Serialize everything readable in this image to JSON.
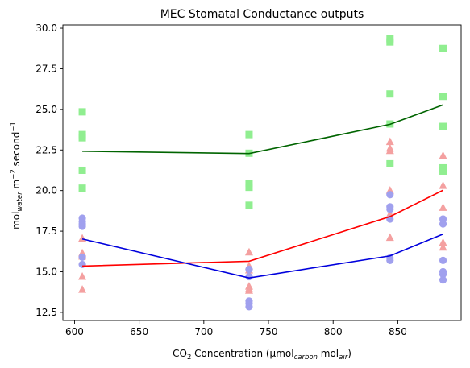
{
  "chart_data": {
    "type": "scatter",
    "title": "MEC Stomatal Conductance outputs",
    "xlabel": {
      "parts": [
        {
          "text": "CO",
          "style": "normal"
        },
        {
          "text": "2",
          "style": "sub-plain"
        },
        {
          "text": " Concentration (μmol",
          "style": "normal"
        },
        {
          "text": "carbon",
          "style": "sub"
        },
        {
          "text": " mol",
          "style": "normal"
        },
        {
          "text": "air",
          "style": "sub"
        },
        {
          "text": ")",
          "style": "normal"
        }
      ]
    },
    "ylabel": {
      "parts": [
        {
          "text": "mol",
          "style": "normal"
        },
        {
          "text": "water",
          "style": "sub"
        },
        {
          "text": " m",
          "style": "normal"
        },
        {
          "text": "−2",
          "style": "sup"
        },
        {
          "text": " second",
          "style": "normal"
        },
        {
          "text": "−1",
          "style": "sup"
        }
      ]
    },
    "xlim": [
      591,
      899
    ],
    "ylim": [
      12.0,
      30.2
    ],
    "x_ticks": [
      600,
      650,
      700,
      750,
      800,
      850
    ],
    "x_tick_labels": [
      "600",
      "650",
      "700",
      "750",
      "800",
      "850"
    ],
    "y_ticks": [
      12.5,
      15.0,
      17.5,
      20.0,
      22.5,
      25.0,
      27.5,
      30.0
    ],
    "y_tick_labels": [
      "12.5",
      "15.0",
      "17.5",
      "20.0",
      "22.5",
      "25.0",
      "27.5",
      "30.0"
    ],
    "grid": false,
    "scatter_series": [
      {
        "marker": "square",
        "color": "#90ee90",
        "points": [
          [
            606,
            24.85
          ],
          [
            606,
            23.45
          ],
          [
            606,
            23.25
          ],
          [
            606,
            21.25
          ],
          [
            606,
            20.15
          ],
          [
            735,
            23.45
          ],
          [
            735,
            22.3
          ],
          [
            735,
            20.45
          ],
          [
            735,
            20.2
          ],
          [
            735,
            19.1
          ],
          [
            844,
            29.35
          ],
          [
            844,
            29.15
          ],
          [
            844,
            25.95
          ],
          [
            844,
            24.1
          ],
          [
            844,
            21.65
          ],
          [
            885,
            28.75
          ],
          [
            885,
            25.8
          ],
          [
            885,
            23.95
          ],
          [
            885,
            21.4
          ],
          [
            885,
            21.2
          ]
        ]
      },
      {
        "marker": "triangle",
        "color": "#f4a0a0",
        "points": [
          [
            606,
            17.05
          ],
          [
            606,
            16.15
          ],
          [
            606,
            15.95
          ],
          [
            606,
            14.7
          ],
          [
            606,
            13.9
          ],
          [
            735,
            16.2
          ],
          [
            735,
            15.35
          ],
          [
            735,
            15.1
          ],
          [
            735,
            14.1
          ],
          [
            735,
            13.95
          ],
          [
            735,
            13.85
          ],
          [
            844,
            23.0
          ],
          [
            844,
            22.6
          ],
          [
            844,
            22.45
          ],
          [
            844,
            20.0
          ],
          [
            844,
            18.55
          ],
          [
            844,
            17.1
          ],
          [
            885,
            22.15
          ],
          [
            885,
            20.3
          ],
          [
            885,
            18.95
          ],
          [
            885,
            16.8
          ],
          [
            885,
            16.5
          ]
        ]
      },
      {
        "marker": "circle",
        "color": "#a0a0ee",
        "points": [
          [
            606,
            18.3
          ],
          [
            606,
            18.1
          ],
          [
            606,
            17.95
          ],
          [
            606,
            17.8
          ],
          [
            606,
            15.9
          ],
          [
            606,
            15.45
          ],
          [
            735,
            15.15
          ],
          [
            735,
            14.7
          ],
          [
            735,
            13.2
          ],
          [
            735,
            13.05
          ],
          [
            735,
            12.85
          ],
          [
            844,
            19.75
          ],
          [
            844,
            19.0
          ],
          [
            844,
            18.85
          ],
          [
            844,
            18.25
          ],
          [
            844,
            15.85
          ],
          [
            844,
            15.7
          ],
          [
            885,
            18.25
          ],
          [
            885,
            17.95
          ],
          [
            885,
            15.7
          ],
          [
            885,
            15.0
          ],
          [
            885,
            14.85
          ],
          [
            885,
            14.5
          ]
        ]
      }
    ],
    "line_series": [
      {
        "color": "#006400",
        "x": [
          606,
          735,
          844,
          885
        ],
        "y": [
          22.42,
          22.28,
          24.08,
          25.28
        ]
      },
      {
        "color": "#ff0000",
        "x": [
          606,
          735,
          844,
          885
        ],
        "y": [
          15.35,
          15.65,
          18.4,
          20.02
        ]
      },
      {
        "color": "#0000dd",
        "x": [
          606,
          735,
          844,
          885
        ],
        "y": [
          17.02,
          14.62,
          15.98,
          17.32
        ]
      }
    ]
  }
}
